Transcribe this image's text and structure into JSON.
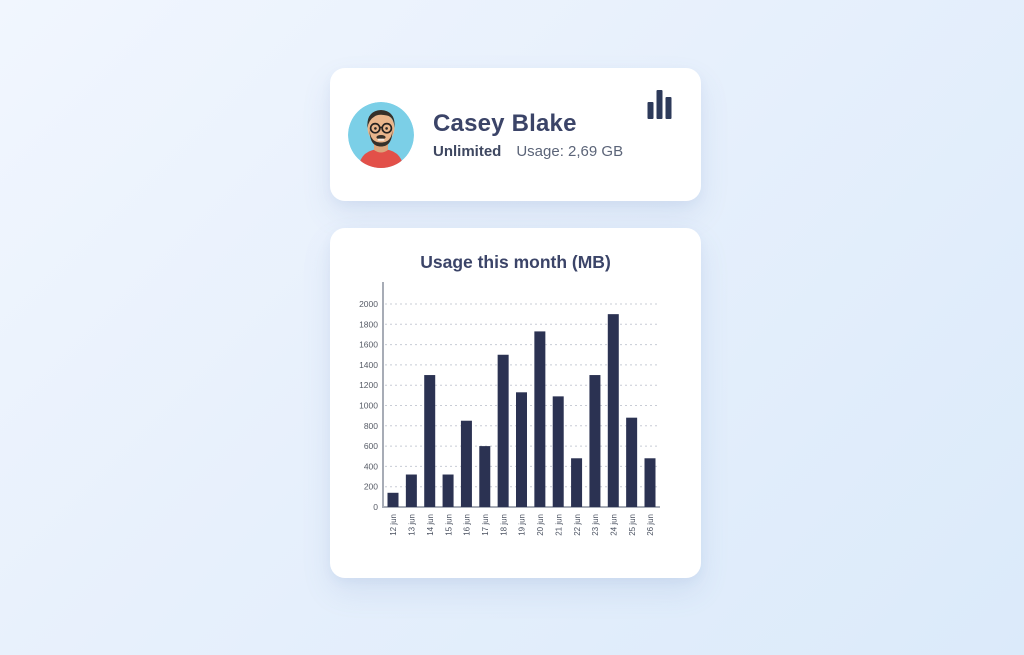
{
  "profile_card": {
    "name": "Casey Blake",
    "plan": "Unlimited",
    "usage": "Usage: 2,69 GB",
    "icon": "bar-chart-icon",
    "icon_color": "#2d3a5a",
    "avatar": {
      "background": "#7bcfe7",
      "shirt": "#e25049",
      "skin": "#eab68c",
      "hair": "#363029"
    }
  },
  "usage_card": {
    "title": "Usage this month (MB)"
  },
  "chart_data": {
    "type": "bar",
    "title": "Usage this month (MB)",
    "categories": [
      "12 jun",
      "13 jun",
      "14 jun",
      "15 jun",
      "16 jun",
      "17 jun",
      "18 jun",
      "19 jun",
      "20 jun",
      "21 jun",
      "22 jun",
      "23 jun",
      "24 jun",
      "25 jun",
      "26 jun"
    ],
    "values": [
      140,
      320,
      1300,
      320,
      850,
      600,
      1500,
      1130,
      1730,
      1090,
      480,
      1300,
      1900,
      880,
      480
    ],
    "xlabel": "",
    "ylabel": "",
    "ylim": [
      0,
      2000
    ],
    "ytick_interval": 200,
    "yticks": [
      0,
      200,
      400,
      600,
      800,
      1000,
      1200,
      1400,
      1600,
      1800,
      2000
    ],
    "grid": "horizontal-dashed",
    "legend": "none",
    "bar_color": "#2b3252",
    "gridline_color": "#c8ccd5",
    "axis_color": "#a7acb6",
    "tick_label_color": "#565b66",
    "accent_navy": "#3b4468"
  }
}
